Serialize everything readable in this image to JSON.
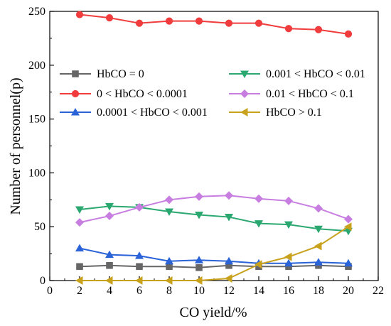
{
  "chart_data": {
    "type": "line",
    "xlabel": "CO yield/%",
    "ylabel": "Number of personnel(p)",
    "xlim": [
      0,
      22
    ],
    "ylim": [
      0,
      250
    ],
    "xticks": [
      "0",
      "2",
      "4",
      "6",
      "8",
      "10",
      "12",
      "14",
      "16",
      "18",
      "20",
      "22"
    ],
    "yticks": [
      "0",
      "50",
      "100",
      "150",
      "200",
      "250"
    ],
    "grid": false,
    "legend_placement": "upper-middle",
    "x": [
      2,
      4,
      6,
      8,
      10,
      12,
      14,
      16,
      18,
      20
    ],
    "series": [
      {
        "name": "HbCO = 0",
        "color": "#666666",
        "marker": "square",
        "values": [
          13,
          14,
          13,
          13,
          12,
          14,
          13,
          13,
          14,
          13
        ]
      },
      {
        "name": "0 < HbCO < 0.0001",
        "color": "#f03c3c",
        "marker": "circle",
        "values": [
          247,
          244,
          239,
          241,
          241,
          239,
          239,
          234,
          233,
          229
        ]
      },
      {
        "name": "0.0001 < HbCO < 0.001",
        "color": "#2a62d8",
        "marker": "triangle-up",
        "values": [
          30,
          24,
          23,
          18,
          19,
          18,
          16,
          16,
          17,
          16
        ]
      },
      {
        "name": "0.001 < HbCO < 0.01",
        "color": "#2aa870",
        "marker": "triangle-down",
        "values": [
          66,
          69,
          68,
          64,
          61,
          59,
          53,
          52,
          48,
          46
        ]
      },
      {
        "name": "0.01 < HbCO < 0.1",
        "color": "#c77ee0",
        "marker": "diamond",
        "values": [
          54,
          60,
          68,
          75,
          78,
          79,
          76,
          74,
          67,
          57
        ]
      },
      {
        "name": "HbCO > 0.1",
        "color": "#c8a21c",
        "marker": "triangle-left",
        "values": [
          0,
          0,
          0,
          0,
          0,
          2,
          15,
          22,
          32,
          50
        ]
      }
    ]
  }
}
